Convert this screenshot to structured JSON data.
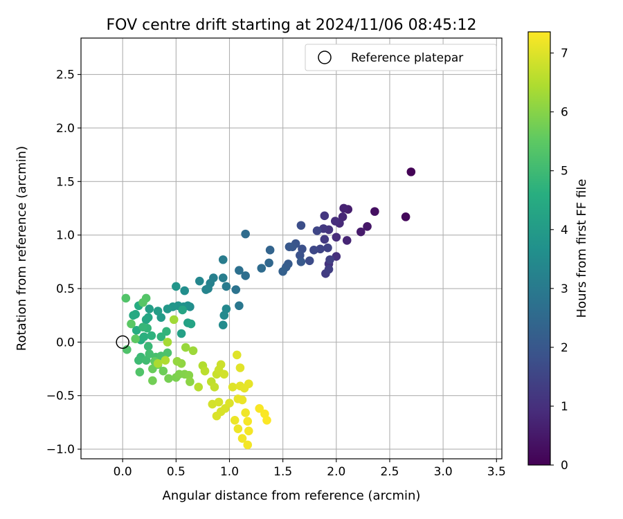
{
  "chart_data": {
    "type": "scatter",
    "title": "FOV centre drift starting at 2024/11/06 08:45:12",
    "xlabel": "Angular distance from reference (arcmin)",
    "ylabel": "Rotation from reference (arcmin)",
    "colorbar_label": "Hours from first FF file",
    "colormap": "viridis",
    "grid": true,
    "legend_position": "top-right",
    "xlim": [
      -0.39,
      3.55
    ],
    "ylim": [
      -1.09,
      2.84
    ],
    "clim": [
      0,
      7.36
    ],
    "x_ticks": [
      "0.0",
      "0.5",
      "1.0",
      "1.5",
      "2.0",
      "2.5",
      "3.0",
      "3.5"
    ],
    "y_ticks": [
      "−1.0",
      "−0.5",
      "0.0",
      "0.5",
      "1.0",
      "1.5",
      "2.0",
      "2.5"
    ],
    "colorbar_ticks": [
      "0",
      "1",
      "2",
      "3",
      "4",
      "5",
      "6",
      "7"
    ],
    "reference": {
      "label": "Reference platepar",
      "x": 0.0,
      "y": 0.0,
      "marker": "open-circle"
    },
    "points": [
      {
        "x": 2.7,
        "y": 1.59,
        "t": 0.05
      },
      {
        "x": 2.65,
        "y": 1.17,
        "t": 0.15
      },
      {
        "x": 2.36,
        "y": 1.22,
        "t": 0.3
      },
      {
        "x": 2.29,
        "y": 1.08,
        "t": 0.45
      },
      {
        "x": 2.23,
        "y": 1.03,
        "t": 0.55
      },
      {
        "x": 2.11,
        "y": 1.24,
        "t": 0.6
      },
      {
        "x": 2.07,
        "y": 1.25,
        "t": 0.7
      },
      {
        "x": 2.1,
        "y": 0.95,
        "t": 0.75
      },
      {
        "x": 2.06,
        "y": 1.17,
        "t": 0.8
      },
      {
        "x": 2.03,
        "y": 1.11,
        "t": 0.85
      },
      {
        "x": 2.0,
        "y": 0.98,
        "t": 0.9
      },
      {
        "x": 1.99,
        "y": 1.13,
        "t": 0.95
      },
      {
        "x": 2.0,
        "y": 0.8,
        "t": 1.0
      },
      {
        "x": 1.93,
        "y": 0.73,
        "t": 1.05
      },
      {
        "x": 1.93,
        "y": 1.05,
        "t": 1.1
      },
      {
        "x": 1.89,
        "y": 1.18,
        "t": 1.15
      },
      {
        "x": 1.88,
        "y": 1.06,
        "t": 1.2
      },
      {
        "x": 1.89,
        "y": 0.96,
        "t": 1.25
      },
      {
        "x": 1.9,
        "y": 0.64,
        "t": 1.3
      },
      {
        "x": 1.93,
        "y": 0.68,
        "t": 1.35
      },
      {
        "x": 1.94,
        "y": 0.77,
        "t": 1.4
      },
      {
        "x": 1.92,
        "y": 0.88,
        "t": 1.45
      },
      {
        "x": 1.85,
        "y": 0.87,
        "t": 1.5
      },
      {
        "x": 1.82,
        "y": 1.04,
        "t": 1.55
      },
      {
        "x": 1.79,
        "y": 0.86,
        "t": 1.6
      },
      {
        "x": 1.75,
        "y": 0.76,
        "t": 1.7
      },
      {
        "x": 1.67,
        "y": 1.09,
        "t": 1.75
      },
      {
        "x": 1.68,
        "y": 0.87,
        "t": 1.8
      },
      {
        "x": 1.66,
        "y": 0.81,
        "t": 1.85
      },
      {
        "x": 1.62,
        "y": 0.92,
        "t": 1.9
      },
      {
        "x": 1.59,
        "y": 0.89,
        "t": 1.95
      },
      {
        "x": 1.56,
        "y": 0.89,
        "t": 2.0
      },
      {
        "x": 1.67,
        "y": 0.75,
        "t": 2.05
      },
      {
        "x": 1.55,
        "y": 0.73,
        "t": 2.1
      },
      {
        "x": 1.53,
        "y": 0.7,
        "t": 2.15
      },
      {
        "x": 1.5,
        "y": 0.66,
        "t": 2.25
      },
      {
        "x": 1.38,
        "y": 0.86,
        "t": 2.35
      },
      {
        "x": 1.37,
        "y": 0.74,
        "t": 2.45
      },
      {
        "x": 1.3,
        "y": 0.69,
        "t": 2.55
      },
      {
        "x": 1.15,
        "y": 1.01,
        "t": 2.6
      },
      {
        "x": 1.15,
        "y": 0.62,
        "t": 2.65
      },
      {
        "x": 1.09,
        "y": 0.67,
        "t": 2.7
      },
      {
        "x": 1.06,
        "y": 0.49,
        "t": 2.8
      },
      {
        "x": 1.09,
        "y": 0.34,
        "t": 2.9
      },
      {
        "x": 0.97,
        "y": 0.52,
        "t": 3.0
      },
      {
        "x": 0.94,
        "y": 0.77,
        "t": 3.05
      },
      {
        "x": 0.94,
        "y": 0.6,
        "t": 3.1
      },
      {
        "x": 0.85,
        "y": 0.6,
        "t": 3.15
      },
      {
        "x": 0.82,
        "y": 0.55,
        "t": 3.2
      },
      {
        "x": 0.8,
        "y": 0.5,
        "t": 3.25
      },
      {
        "x": 0.78,
        "y": 0.49,
        "t": 3.3
      },
      {
        "x": 0.72,
        "y": 0.57,
        "t": 3.35
      },
      {
        "x": 0.97,
        "y": 0.31,
        "t": 3.4
      },
      {
        "x": 0.95,
        "y": 0.25,
        "t": 3.45
      },
      {
        "x": 0.94,
        "y": 0.16,
        "t": 3.5
      },
      {
        "x": 0.63,
        "y": 0.33,
        "t": 3.55
      },
      {
        "x": 0.58,
        "y": 0.48,
        "t": 3.6
      },
      {
        "x": 0.61,
        "y": 0.34,
        "t": 3.65
      },
      {
        "x": 0.57,
        "y": 0.33,
        "t": 3.7
      },
      {
        "x": 0.52,
        "y": 0.34,
        "t": 3.75
      },
      {
        "x": 0.5,
        "y": 0.52,
        "t": 3.8
      },
      {
        "x": 0.47,
        "y": 0.33,
        "t": 3.85
      },
      {
        "x": 0.42,
        "y": 0.31,
        "t": 3.9
      },
      {
        "x": 0.36,
        "y": 0.23,
        "t": 4.0
      },
      {
        "x": 0.33,
        "y": 0.29,
        "t": 4.05
      },
      {
        "x": 0.25,
        "y": 0.31,
        "t": 4.1
      },
      {
        "x": 0.55,
        "y": 0.08,
        "t": 4.15
      },
      {
        "x": 0.61,
        "y": 0.18,
        "t": 4.2
      },
      {
        "x": 0.64,
        "y": 0.17,
        "t": 4.25
      },
      {
        "x": 0.56,
        "y": 0.3,
        "t": 4.28
      },
      {
        "x": 0.24,
        "y": 0.23,
        "t": 4.3
      },
      {
        "x": 0.22,
        "y": 0.21,
        "t": 4.35
      },
      {
        "x": 0.12,
        "y": 0.26,
        "t": 4.4
      },
      {
        "x": 0.1,
        "y": 0.25,
        "t": 4.45
      },
      {
        "x": 0.15,
        "y": 0.34,
        "t": 4.5
      },
      {
        "x": 0.13,
        "y": 0.11,
        "t": 4.55
      },
      {
        "x": 0.17,
        "y": 0.02,
        "t": 4.6
      },
      {
        "x": 0.2,
        "y": 0.05,
        "t": 4.65
      },
      {
        "x": 0.27,
        "y": 0.06,
        "t": 4.7
      },
      {
        "x": 0.36,
        "y": 0.05,
        "t": 4.75
      },
      {
        "x": 0.41,
        "y": 0.1,
        "t": 4.78
      },
      {
        "x": 0.23,
        "y": 0.13,
        "t": 4.8
      },
      {
        "x": 0.19,
        "y": 0.14,
        "t": 4.85
      },
      {
        "x": 0.24,
        "y": -0.04,
        "t": 4.9
      },
      {
        "x": 0.17,
        "y": -0.14,
        "t": 4.95
      },
      {
        "x": 0.15,
        "y": -0.17,
        "t": 5.0
      },
      {
        "x": 0.22,
        "y": -0.17,
        "t": 5.05
      },
      {
        "x": 0.25,
        "y": -0.11,
        "t": 5.1
      },
      {
        "x": 0.31,
        "y": -0.14,
        "t": 5.15
      },
      {
        "x": 0.36,
        "y": -0.13,
        "t": 5.2
      },
      {
        "x": 0.42,
        "y": -0.1,
        "t": 5.25
      },
      {
        "x": 0.04,
        "y": -0.07,
        "t": 5.28
      },
      {
        "x": 0.16,
        "y": -0.28,
        "t": 5.3
      },
      {
        "x": 0.03,
        "y": 0.41,
        "t": 5.32
      },
      {
        "x": 0.22,
        "y": 0.41,
        "t": 5.35
      },
      {
        "x": 0.19,
        "y": 0.37,
        "t": 5.4
      },
      {
        "x": 0.08,
        "y": 0.17,
        "t": 5.45
      },
      {
        "x": 0.12,
        "y": 0.03,
        "t": 5.5
      },
      {
        "x": 0.3,
        "y": -0.18,
        "t": 5.55
      },
      {
        "x": 0.33,
        "y": -0.21,
        "t": 5.6
      },
      {
        "x": 0.28,
        "y": -0.25,
        "t": 5.65
      },
      {
        "x": 0.38,
        "y": -0.27,
        "t": 5.7
      },
      {
        "x": 0.28,
        "y": -0.36,
        "t": 5.75
      },
      {
        "x": 0.43,
        "y": -0.34,
        "t": 5.8
      },
      {
        "x": 0.5,
        "y": -0.33,
        "t": 5.85
      },
      {
        "x": 0.53,
        "y": -0.3,
        "t": 5.9
      },
      {
        "x": 0.58,
        "y": -0.3,
        "t": 5.95
      },
      {
        "x": 0.62,
        "y": -0.31,
        "t": 6.0
      },
      {
        "x": 0.63,
        "y": -0.37,
        "t": 6.05
      },
      {
        "x": 0.55,
        "y": -0.2,
        "t": 6.1
      },
      {
        "x": 0.51,
        "y": -0.18,
        "t": 6.15
      },
      {
        "x": 0.59,
        "y": -0.05,
        "t": 6.2
      },
      {
        "x": 0.66,
        "y": -0.08,
        "t": 6.25
      },
      {
        "x": 0.48,
        "y": 0.21,
        "t": 6.3
      },
      {
        "x": 0.42,
        "y": 0.0,
        "t": 6.35
      },
      {
        "x": 0.33,
        "y": -0.2,
        "t": 6.4
      },
      {
        "x": 0.4,
        "y": -0.17,
        "t": 6.45
      },
      {
        "x": 0.75,
        "y": -0.22,
        "t": 6.5
      },
      {
        "x": 0.71,
        "y": -0.42,
        "t": 6.55
      },
      {
        "x": 0.77,
        "y": -0.27,
        "t": 6.6
      },
      {
        "x": 0.83,
        "y": -0.37,
        "t": 6.65
      },
      {
        "x": 0.86,
        "y": -0.42,
        "t": 6.7
      },
      {
        "x": 0.88,
        "y": -0.3,
        "t": 6.75
      },
      {
        "x": 0.9,
        "y": -0.26,
        "t": 6.78
      },
      {
        "x": 0.92,
        "y": -0.21,
        "t": 6.8
      },
      {
        "x": 0.95,
        "y": -0.3,
        "t": 6.85
      },
      {
        "x": 0.84,
        "y": -0.58,
        "t": 6.88
      },
      {
        "x": 0.9,
        "y": -0.56,
        "t": 6.9
      },
      {
        "x": 0.92,
        "y": -0.65,
        "t": 6.92
      },
      {
        "x": 0.96,
        "y": -0.62,
        "t": 6.94
      },
      {
        "x": 0.88,
        "y": -0.69,
        "t": 6.96
      },
      {
        "x": 1.0,
        "y": -0.57,
        "t": 6.98
      },
      {
        "x": 1.03,
        "y": -0.42,
        "t": 7.0
      },
      {
        "x": 1.07,
        "y": -0.12,
        "t": 7.02
      },
      {
        "x": 1.1,
        "y": -0.24,
        "t": 7.04
      },
      {
        "x": 1.1,
        "y": -0.41,
        "t": 7.06
      },
      {
        "x": 1.14,
        "y": -0.43,
        "t": 7.08
      },
      {
        "x": 1.18,
        "y": -0.39,
        "t": 7.1
      },
      {
        "x": 1.08,
        "y": -0.53,
        "t": 7.12
      },
      {
        "x": 1.12,
        "y": -0.54,
        "t": 7.14
      },
      {
        "x": 1.05,
        "y": -0.73,
        "t": 7.16
      },
      {
        "x": 1.08,
        "y": -0.81,
        "t": 7.18
      },
      {
        "x": 1.15,
        "y": -0.66,
        "t": 7.2
      },
      {
        "x": 1.12,
        "y": -0.9,
        "t": 7.22
      },
      {
        "x": 1.17,
        "y": -0.96,
        "t": 7.24
      },
      {
        "x": 1.18,
        "y": -0.83,
        "t": 7.26
      },
      {
        "x": 1.17,
        "y": -0.74,
        "t": 7.28
      },
      {
        "x": 1.28,
        "y": -0.62,
        "t": 7.3
      },
      {
        "x": 1.33,
        "y": -0.67,
        "t": 7.32
      },
      {
        "x": 1.35,
        "y": -0.73,
        "t": 7.34
      }
    ]
  }
}
